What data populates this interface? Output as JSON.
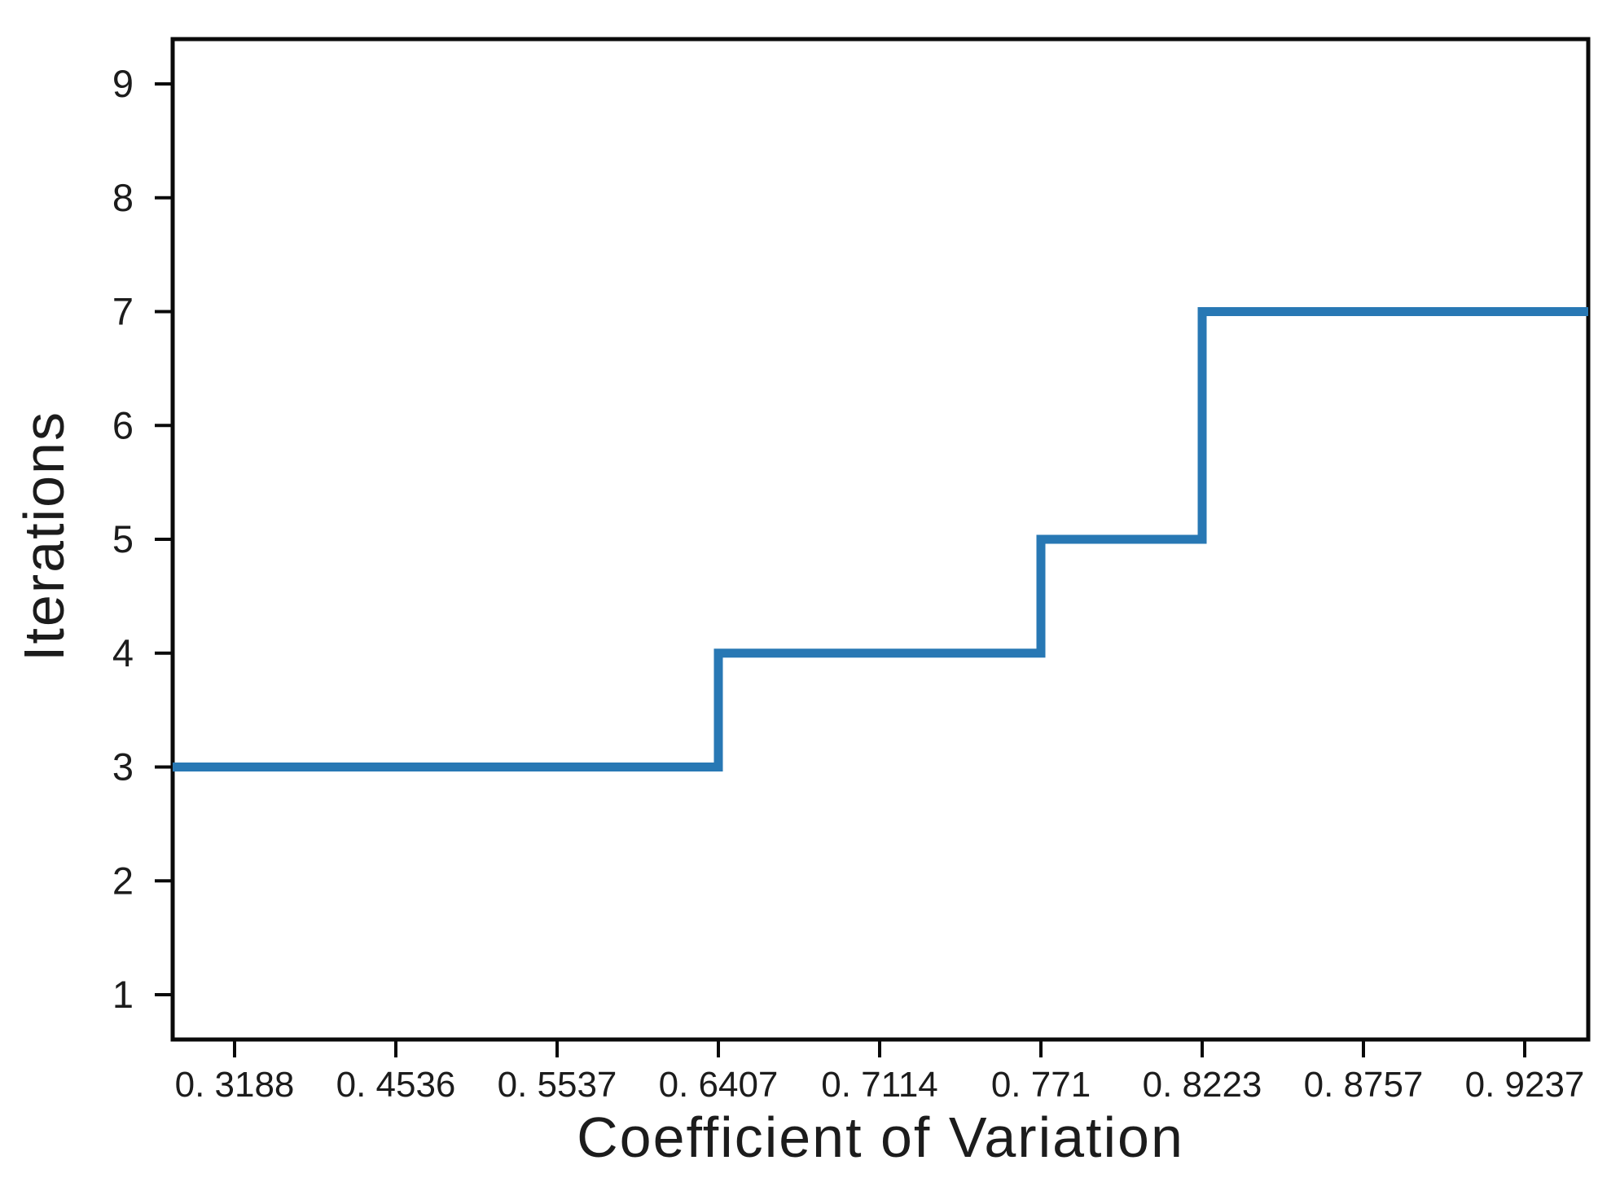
{
  "chart_data": {
    "type": "line",
    "subtype": "step-post",
    "title": "",
    "xlabel": "Coefficient of Variation",
    "ylabel": "Iterations",
    "x_tick_labels": [
      "0. 3188",
      "0. 4536",
      "0. 5537",
      "0. 6407",
      "0. 7114",
      "0. 771",
      "0. 8223",
      "0. 8757",
      "0. 9237"
    ],
    "x_values": [
      0.3188,
      0.4536,
      0.5537,
      0.6407,
      0.7114,
      0.771,
      0.8223,
      0.8757,
      0.9237
    ],
    "y_ticks": [
      1,
      2,
      3,
      4,
      5,
      6,
      7,
      8,
      9
    ],
    "ylim_ticks": [
      1,
      9
    ],
    "x_tick_spacing": "categorical-even",
    "series": [
      {
        "name": "Iterations",
        "values": [
          3,
          3,
          3,
          4,
          4,
          5,
          7,
          7,
          7
        ]
      }
    ],
    "step_changes": [
      {
        "at_x": 0.6407,
        "from": 3,
        "to": 4
      },
      {
        "at_x": 0.771,
        "from": 4,
        "to": 5
      },
      {
        "at_x": 0.8223,
        "from": 5,
        "to": 7
      }
    ],
    "line_color": "#2878b4",
    "axis_color": "#0a0a0a",
    "text_color": "#1c1c1c",
    "background_color": "#ffffff",
    "grid": false,
    "legend": false,
    "frame": "full-box"
  }
}
